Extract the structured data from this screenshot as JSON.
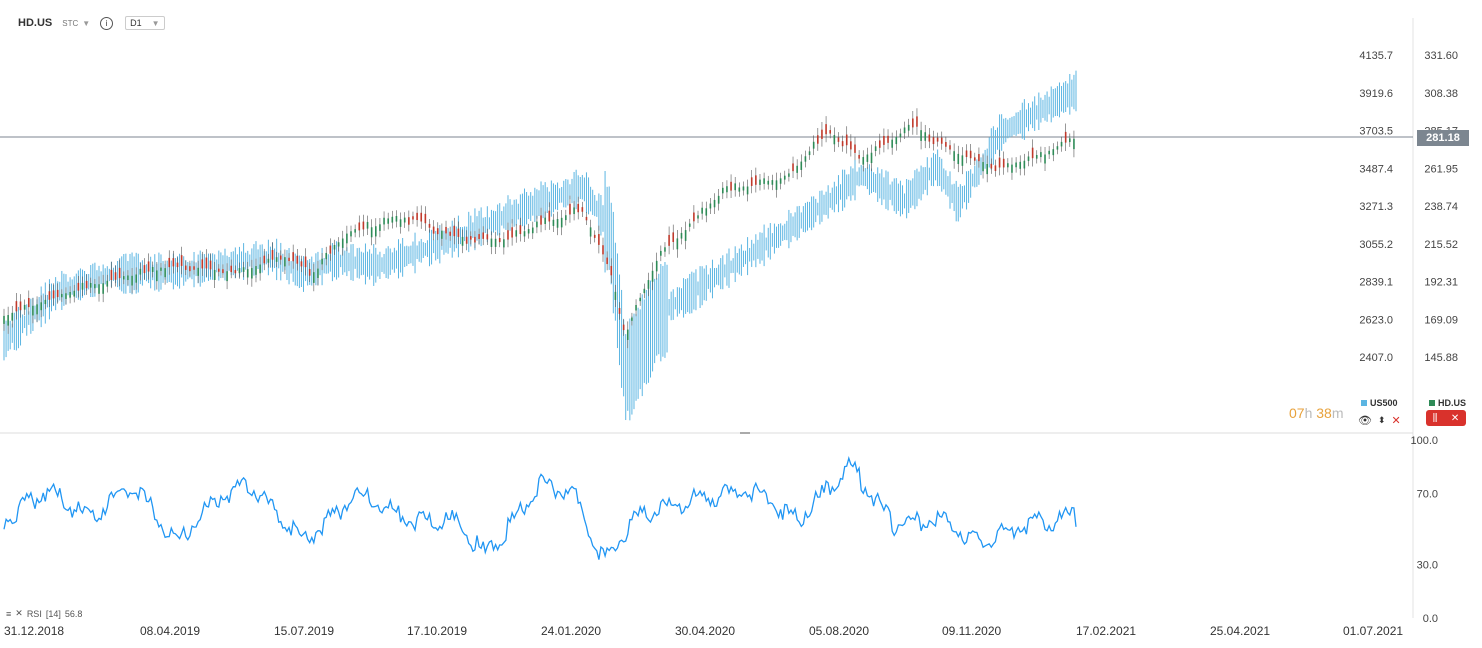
{
  "header": {
    "symbol": "HD.US",
    "type": "STC",
    "info_icon": "info-icon",
    "timeframe": "D1"
  },
  "price_axis_left": [
    "4135.7",
    "3919.6",
    "3703.5",
    "3487.4",
    "3271.3",
    "3055.2",
    "2839.1",
    "2623.0",
    "2407.0"
  ],
  "price_axis_right": [
    "331.60",
    "308.38",
    "285.17",
    "261.95",
    "238.74",
    "215.52",
    "192.31",
    "169.09",
    "145.88"
  ],
  "current_price": "281.18",
  "timer": {
    "hours": "07",
    "h_unit": "h",
    "minutes": "38",
    "m_unit": "m"
  },
  "legend": {
    "us500": "US500",
    "hd": "HD.US"
  },
  "colors": {
    "us500": "#5bb5e2",
    "hd_up": "#2e8b57",
    "hd_down": "#c0392b",
    "rsi": "#2196f3",
    "price_line": "#7c8690"
  },
  "rsi": {
    "label": "RSI",
    "period": "[14]",
    "value": "56.8",
    "levels": [
      "100.0",
      "70.0",
      "30.0",
      "0.0"
    ]
  },
  "x_dates": [
    "31.12.2018",
    "08.04.2019",
    "15.07.2019",
    "17.10.2019",
    "24.01.2020",
    "30.04.2020",
    "05.08.2020",
    "09.11.2020",
    "17.02.2021",
    "25.04.2021",
    "01.07.2021"
  ],
  "chart_data": [
    {
      "type": "line",
      "name": "HD.US",
      "axis": "right",
      "ylim": [
        145.88,
        331.6
      ],
      "x": [
        "31.12.2018",
        "08.04.2019",
        "15.07.2019",
        "17.10.2019",
        "24.01.2020",
        "30.04.2020",
        "05.08.2020",
        "09.11.2020",
        "29.01.2021"
      ],
      "y": [
        170,
        200,
        212,
        228,
        236,
        218,
        278,
        273,
        281.18
      ],
      "path": [
        [
          0,
          171
        ],
        [
          0.05,
          183
        ],
        [
          0.1,
          193
        ],
        [
          0.16,
          202
        ],
        [
          0.22,
          198
        ],
        [
          0.26,
          208
        ],
        [
          0.29,
          198
        ],
        [
          0.32,
          222
        ],
        [
          0.38,
          232
        ],
        [
          0.42,
          220
        ],
        [
          0.47,
          218
        ],
        [
          0.5,
          227
        ],
        [
          0.54,
          236
        ],
        [
          0.565,
          200
        ],
        [
          0.58,
          160
        ],
        [
          0.61,
          207
        ],
        [
          0.67,
          247
        ],
        [
          0.73,
          256
        ],
        [
          0.77,
          285
        ],
        [
          0.8,
          268
        ],
        [
          0.85,
          288
        ],
        [
          0.89,
          271
        ],
        [
          0.93,
          262
        ],
        [
          0.97,
          270
        ],
        [
          1,
          281
        ]
      ]
    },
    {
      "type": "line",
      "name": "US500",
      "axis": "left",
      "ylim": [
        2407.0,
        4135.7
      ],
      "x": [
        "31.12.2018",
        "08.04.2019",
        "15.07.2019",
        "17.10.2019",
        "24.01.2020",
        "30.04.2020",
        "05.08.2020",
        "09.11.2020",
        "29.01.2021"
      ],
      "y": [
        2510,
        2890,
        2990,
        2970,
        3320,
        2910,
        3300,
        3560,
        3930
      ],
      "path": [
        [
          0,
          2500
        ],
        [
          0.05,
          2780
        ],
        [
          0.1,
          2880
        ],
        [
          0.17,
          2900
        ],
        [
          0.25,
          2980
        ],
        [
          0.28,
          2880
        ],
        [
          0.31,
          2960
        ],
        [
          0.35,
          2930
        ],
        [
          0.41,
          3060
        ],
        [
          0.44,
          3140
        ],
        [
          0.5,
          3290
        ],
        [
          0.54,
          3380
        ],
        [
          0.565,
          3140
        ],
        [
          0.58,
          2290
        ],
        [
          0.61,
          2650
        ],
        [
          0.67,
          2890
        ],
        [
          0.73,
          3130
        ],
        [
          0.77,
          3300
        ],
        [
          0.8,
          3450
        ],
        [
          0.84,
          3300
        ],
        [
          0.87,
          3500
        ],
        [
          0.89,
          3280
        ],
        [
          0.93,
          3690
        ],
        [
          0.97,
          3830
        ],
        [
          1,
          3930
        ]
      ]
    },
    {
      "type": "line",
      "name": "RSI [14]",
      "ylim": [
        0,
        100
      ],
      "levels": [
        30,
        70
      ],
      "path": [
        [
          0,
          55
        ],
        [
          0.04,
          72
        ],
        [
          0.08,
          55
        ],
        [
          0.12,
          76
        ],
        [
          0.16,
          42
        ],
        [
          0.2,
          68
        ],
        [
          0.23,
          75
        ],
        [
          0.28,
          42
        ],
        [
          0.33,
          70
        ],
        [
          0.38,
          55
        ],
        [
          0.42,
          55
        ],
        [
          0.45,
          35
        ],
        [
          0.5,
          75
        ],
        [
          0.53,
          72
        ],
        [
          0.56,
          32
        ],
        [
          0.59,
          56
        ],
        [
          0.64,
          66
        ],
        [
          0.7,
          72
        ],
        [
          0.74,
          55
        ],
        [
          0.79,
          85
        ],
        [
          0.83,
          52
        ],
        [
          0.87,
          56
        ],
        [
          0.91,
          42
        ],
        [
          0.95,
          52
        ],
        [
          1,
          57
        ]
      ]
    }
  ]
}
